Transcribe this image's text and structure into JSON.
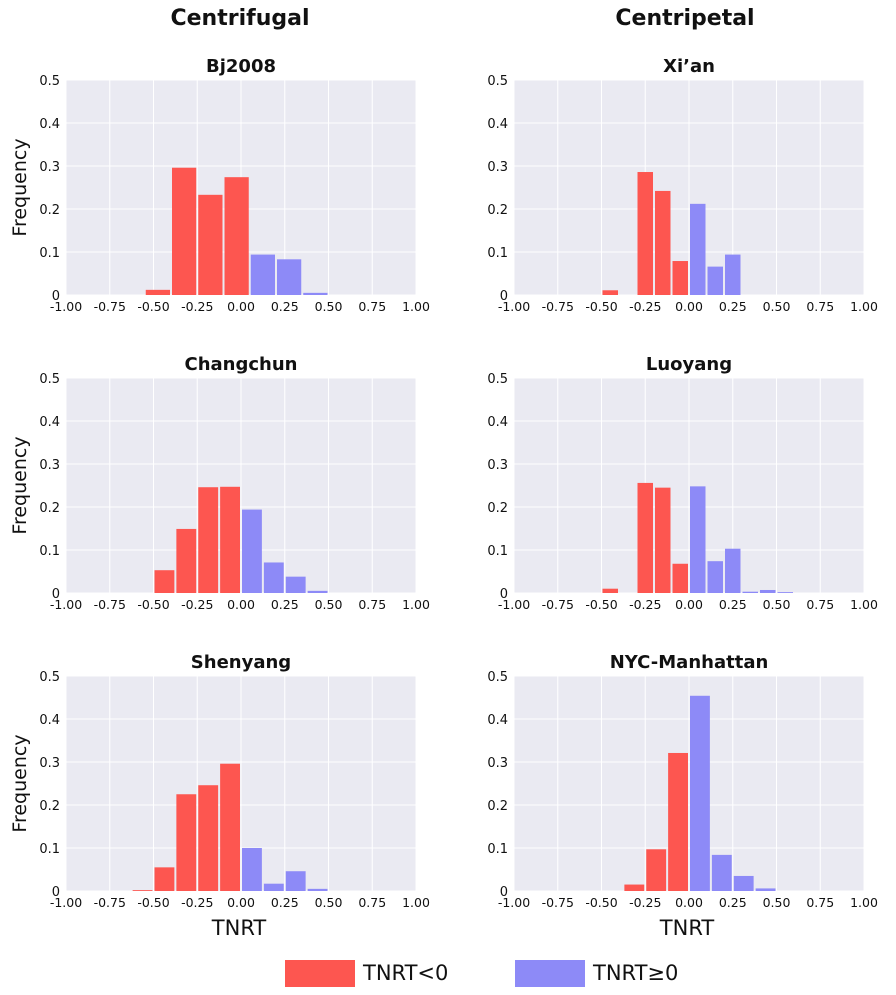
{
  "column_titles": [
    "Centrifugal",
    "Centripetal"
  ],
  "legend": {
    "items": [
      {
        "label": "TNRT<0",
        "color": "#fd5650"
      },
      {
        "label": "TNRT≥0",
        "color": "#8d8af7"
      }
    ]
  },
  "colors": {
    "negative": "#fd5650",
    "positive": "#8d8af7",
    "panel_background": "#eaeaf2",
    "grid": "#ffffff"
  },
  "chart_data": [
    {
      "type": "bar",
      "title": "Bj2008",
      "xlabel": "",
      "ylabel": "Frequency",
      "xlim": [
        -1.0,
        1.0
      ],
      "ylim": [
        0,
        0.5
      ],
      "x_ticks": [
        "-1.00",
        "-0.75",
        "-0.50",
        "-0.25",
        "0.00",
        "0.25",
        "0.50",
        "0.75",
        "1.00"
      ],
      "y_ticks": [
        "0",
        "0.1",
        "0.2",
        "0.3",
        "0.4",
        "0.5"
      ],
      "grid": true,
      "bin_width": 0.15,
      "x": [
        -0.55,
        -0.4,
        -0.25,
        -0.1,
        0.05,
        0.2,
        0.35
      ],
      "values": [
        0.012,
        0.296,
        0.233,
        0.274,
        0.094,
        0.083,
        0.005
      ]
    },
    {
      "type": "bar",
      "title": "Xi’an",
      "xlabel": "",
      "ylabel": "",
      "xlim": [
        -1.0,
        1.0
      ],
      "ylim": [
        0,
        0.5
      ],
      "x_ticks": [
        "-1.00",
        "-0.75",
        "-0.50",
        "-0.25",
        "0.00",
        "0.25",
        "0.50",
        "0.75",
        "1.00"
      ],
      "y_ticks": [
        "0",
        "0.1",
        "0.2",
        "0.3",
        "0.4",
        "0.5"
      ],
      "grid": true,
      "bin_width": 0.1,
      "x": [
        -0.5,
        -0.4,
        -0.3,
        -0.2,
        -0.1,
        0.0,
        0.1,
        0.2
      ],
      "values": [
        0.011,
        0.0,
        0.286,
        0.242,
        0.079,
        0.212,
        0.066,
        0.094
      ]
    },
    {
      "type": "bar",
      "title": "Changchun",
      "xlabel": "",
      "ylabel": "Frequency",
      "xlim": [
        -1.0,
        1.0
      ],
      "ylim": [
        0,
        0.5
      ],
      "x_ticks": [
        "-1.00",
        "-0.75",
        "-0.50",
        "-0.25",
        "0.00",
        "0.25",
        "0.50",
        "0.75",
        "1.00"
      ],
      "y_ticks": [
        "0",
        "0.1",
        "0.2",
        "0.3",
        "0.4",
        "0.5"
      ],
      "grid": true,
      "bin_width": 0.125,
      "x": [
        -0.5,
        -0.375,
        -0.25,
        -0.125,
        0.0,
        0.125,
        0.25,
        0.375
      ],
      "values": [
        0.053,
        0.149,
        0.246,
        0.247,
        0.194,
        0.071,
        0.038,
        0.005
      ]
    },
    {
      "type": "bar",
      "title": "Luoyang",
      "xlabel": "",
      "ylabel": "",
      "xlim": [
        -1.0,
        1.0
      ],
      "ylim": [
        0,
        0.5
      ],
      "x_ticks": [
        "-1.00",
        "-0.75",
        "-0.50",
        "-0.25",
        "0.00",
        "0.25",
        "0.50",
        "0.75",
        "1.00"
      ],
      "y_ticks": [
        "0",
        "0.1",
        "0.2",
        "0.3",
        "0.4",
        "0.5"
      ],
      "grid": true,
      "bin_width": 0.1,
      "x": [
        -0.5,
        -0.4,
        -0.3,
        -0.2,
        -0.1,
        0.0,
        0.1,
        0.2,
        0.3,
        0.4,
        0.5
      ],
      "values": [
        0.01,
        0.0,
        0.256,
        0.245,
        0.068,
        0.248,
        0.074,
        0.103,
        0.003,
        0.007,
        0.002
      ]
    },
    {
      "type": "bar",
      "title": "Shenyang",
      "xlabel": "TNRT",
      "ylabel": "Frequency",
      "xlim": [
        -1.0,
        1.0
      ],
      "ylim": [
        0,
        0.5
      ],
      "x_ticks": [
        "-1.00",
        "-0.75",
        "-0.50",
        "-0.25",
        "0.00",
        "0.25",
        "0.50",
        "0.75",
        "1.00"
      ],
      "y_ticks": [
        "0",
        "0.1",
        "0.2",
        "0.3",
        "0.4",
        "0.5"
      ],
      "grid": true,
      "bin_width": 0.125,
      "x": [
        -0.625,
        -0.5,
        -0.375,
        -0.25,
        -0.125,
        0.0,
        0.125,
        0.25,
        0.375
      ],
      "values": [
        0.002,
        0.055,
        0.225,
        0.246,
        0.296,
        0.1,
        0.017,
        0.046,
        0.005
      ]
    },
    {
      "type": "bar",
      "title": "NYC-Manhattan",
      "xlabel": "TNRT",
      "ylabel": "",
      "xlim": [
        -1.0,
        1.0
      ],
      "ylim": [
        0,
        0.5
      ],
      "x_ticks": [
        "-1.00",
        "-0.75",
        "-0.50",
        "-0.25",
        "0.00",
        "0.25",
        "0.50",
        "0.75",
        "1.00"
      ],
      "y_ticks": [
        "0",
        "0.1",
        "0.2",
        "0.3",
        "0.4",
        "0.5"
      ],
      "grid": true,
      "bin_width": 0.125,
      "x": [
        -0.5,
        -0.375,
        -0.25,
        -0.125,
        0.0,
        0.125,
        0.25,
        0.375
      ],
      "values": [
        0.0,
        0.015,
        0.097,
        0.321,
        0.454,
        0.084,
        0.035,
        0.006
      ]
    }
  ]
}
